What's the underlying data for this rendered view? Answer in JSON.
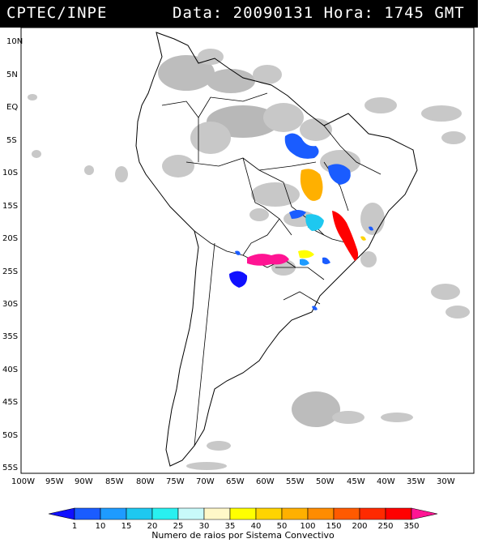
{
  "header": {
    "left": "CPTEC/INPE",
    "right": "Data: 20090131 Hora: 1745 GMT"
  },
  "map": {
    "lat_labels": [
      "10N",
      "5N",
      "EQ",
      "5S",
      "10S",
      "15S",
      "20S",
      "25S",
      "30S",
      "35S",
      "40S",
      "45S",
      "50S",
      "55S"
    ],
    "lon_labels": [
      "100W",
      "95W",
      "90W",
      "85W",
      "80W",
      "75W",
      "70W",
      "65W",
      "60W",
      "55W",
      "50W",
      "45W",
      "40W",
      "35W",
      "30W"
    ]
  },
  "colorbar": {
    "ticks": [
      "1",
      "10",
      "15",
      "20",
      "25",
      "30",
      "35",
      "40",
      "50",
      "100",
      "150",
      "200",
      "250",
      "350"
    ],
    "colors": [
      "#1010ff",
      "#1a5cff",
      "#1e9bff",
      "#1ec8f0",
      "#29f0f0",
      "#c8fafa",
      "#fff8c8",
      "#ffff00",
      "#ffd400",
      "#ffb000",
      "#ff8c00",
      "#ff5a00",
      "#ff2a00",
      "#ff0000",
      "#ff1493"
    ],
    "title": "Numero de raios por Sistema Convectivo"
  }
}
